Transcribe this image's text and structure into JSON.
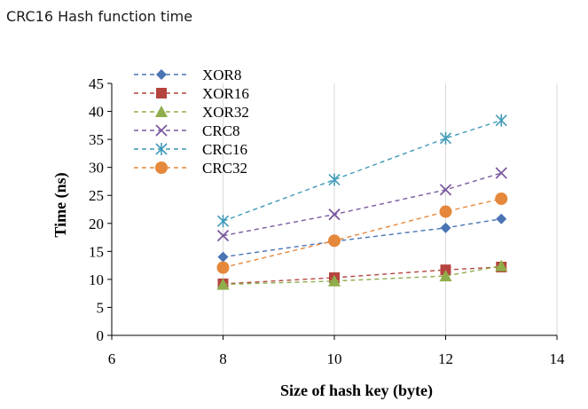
{
  "page": {
    "title": "CRC16 Hash function time"
  },
  "chart_data": {
    "type": "line",
    "title": "",
    "xlabel": "Size of hash key (byte)",
    "ylabel": "Time (ns)",
    "xlim": [
      6,
      14
    ],
    "ylim": [
      0,
      45
    ],
    "xticks": [
      6,
      8,
      10,
      12,
      14
    ],
    "yticks": [
      0,
      5,
      10,
      15,
      20,
      25,
      30,
      35,
      40,
      45
    ],
    "grid": "vertical",
    "legend_position": "top-left",
    "x": [
      8,
      10,
      12,
      13
    ],
    "series": [
      {
        "name": "XOR8",
        "values": [
          14.0,
          16.8,
          19.2,
          20.8
        ],
        "color": "#4a74b4",
        "marker": "diamond"
      },
      {
        "name": "XOR16",
        "values": [
          9.2,
          10.3,
          11.7,
          12.2
        ],
        "color": "#b5443f",
        "marker": "square"
      },
      {
        "name": "XOR32",
        "values": [
          9.1,
          9.7,
          10.6,
          12.4
        ],
        "color": "#8fad4a",
        "marker": "triangle"
      },
      {
        "name": "CRC8",
        "values": [
          17.8,
          21.6,
          26.0,
          29.0
        ],
        "color": "#7a5a9e",
        "marker": "x"
      },
      {
        "name": "CRC16",
        "values": [
          20.4,
          27.8,
          35.2,
          38.4
        ],
        "color": "#3f9ab8",
        "marker": "star"
      },
      {
        "name": "CRC32",
        "values": [
          12.1,
          16.9,
          22.1,
          24.4
        ],
        "color": "#e5883b",
        "marker": "circle"
      }
    ]
  }
}
